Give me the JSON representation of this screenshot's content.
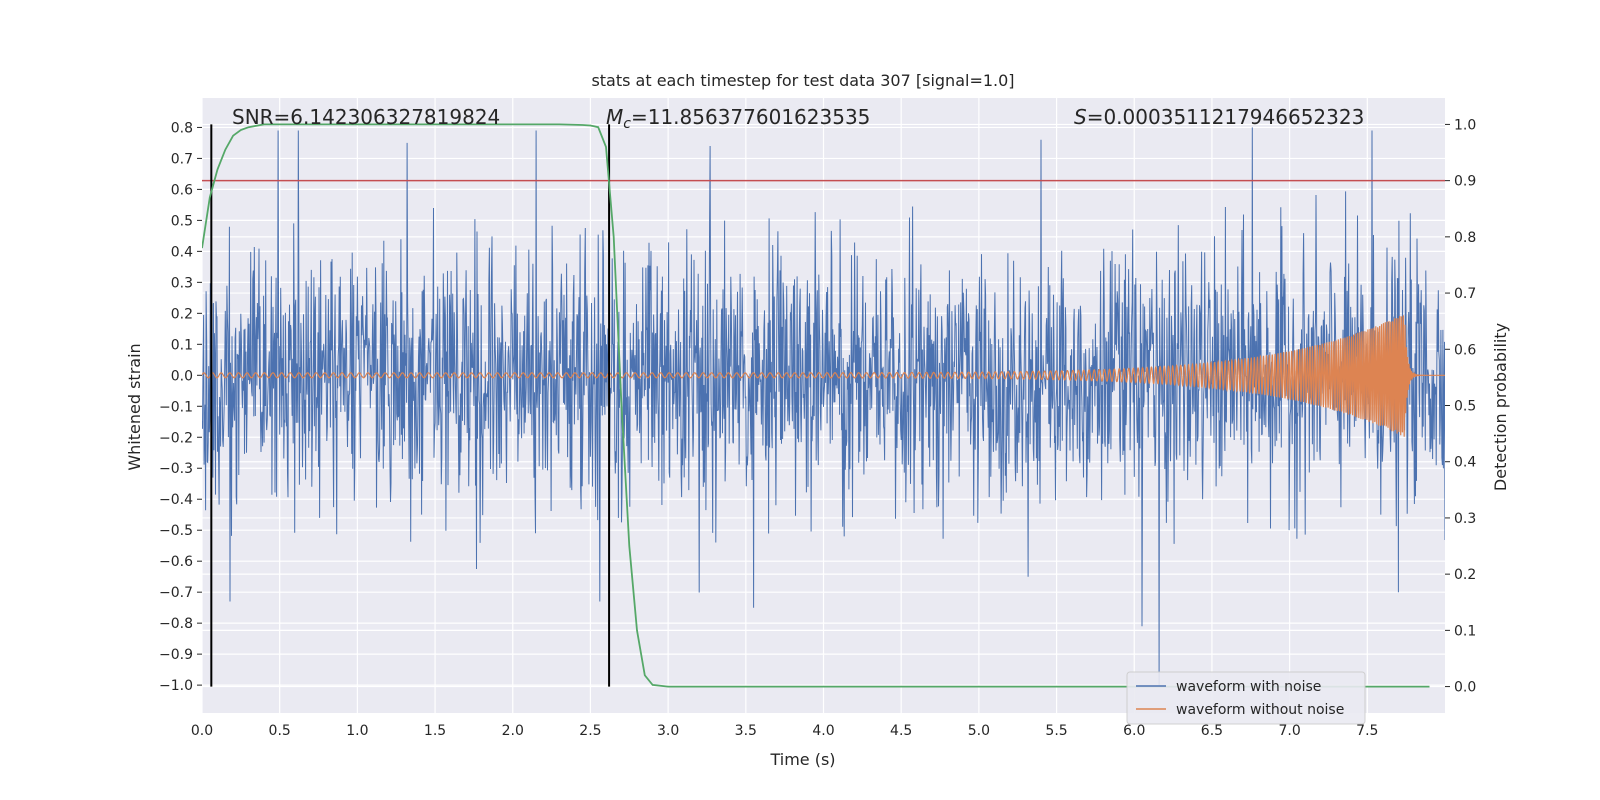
{
  "chart_data": {
    "type": "line",
    "title": "stats at each timestep for test data 307 [signal=1.0]",
    "xlabel": "Time (s)",
    "ylabel": "Whitened strain",
    "ylabel_right": "Detection probability",
    "xlim": [
      0.0,
      8.0
    ],
    "ylim": [
      -1.09,
      0.895
    ],
    "ylim_right": [
      -0.047,
      1.047
    ],
    "x_ticks": [
      "0.0",
      "0.5",
      "1.0",
      "1.5",
      "2.0",
      "2.5",
      "3.0",
      "3.5",
      "4.0",
      "4.5",
      "5.0",
      "5.5",
      "6.0",
      "6.5",
      "7.0",
      "7.5"
    ],
    "y_ticks": [
      "0.8",
      "0.7",
      "0.6",
      "0.5",
      "0.4",
      "0.3",
      "0.2",
      "0.1",
      "0.0",
      "−0.1",
      "−0.2",
      "−0.3",
      "−0.4",
      "−0.5",
      "−0.6",
      "−0.7",
      "−0.8",
      "−0.9",
      "−1.0"
    ],
    "y_ticks_right": [
      "1.0",
      "0.9",
      "0.8",
      "0.7",
      "0.6",
      "0.5",
      "0.4",
      "0.3",
      "0.2",
      "0.1",
      "0.0"
    ],
    "grid": true,
    "legend_position": "lower right",
    "annotations": {
      "snr": "SNR=6.142306327819824",
      "mc_prefix": "=11.856377601623535",
      "s_prefix": "=0.00035112179466523 23"
    },
    "vlines_x": [
      0.06,
      2.62
    ],
    "threshold_right": 0.9,
    "series": [
      {
        "name": "waveform with noise",
        "color": "#4c72b0",
        "description_range": [
          -1.0,
          0.8
        ],
        "peaks": [
          {
            "x": 0.18,
            "y": -0.73
          },
          {
            "x": 0.49,
            "y": 0.79
          },
          {
            "x": 0.62,
            "y": 0.79
          },
          {
            "x": 1.32,
            "y": 0.75
          },
          {
            "x": 2.15,
            "y": 0.79
          },
          {
            "x": 2.56,
            "y": -0.73
          },
          {
            "x": 3.27,
            "y": 0.74
          },
          {
            "x": 3.55,
            "y": -0.75
          },
          {
            "x": 5.4,
            "y": 0.76
          },
          {
            "x": 6.05,
            "y": -0.81
          },
          {
            "x": 6.16,
            "y": -1.0
          },
          {
            "x": 6.76,
            "y": 0.8
          },
          {
            "x": 7.53,
            "y": 0.79
          },
          {
            "x": 7.7,
            "y": -0.7
          }
        ]
      },
      {
        "name": "waveform without noise",
        "color": "#dd8452",
        "chirp": {
          "start_amp": 0.008,
          "peak_amp": 0.2,
          "merge_time": 7.74,
          "f_start": 18,
          "f_end": 90
        }
      },
      {
        "name": "detection probability",
        "color": "#55a868",
        "axis": "right",
        "x": [
          0.0,
          0.05,
          0.1,
          0.15,
          0.2,
          0.25,
          0.3,
          0.4,
          0.6,
          1.0,
          1.5,
          2.0,
          2.3,
          2.45,
          2.5,
          2.55,
          2.6,
          2.65,
          2.7,
          2.75,
          2.8,
          2.85,
          2.9,
          3.0,
          4.0,
          5.0,
          6.0,
          7.0,
          7.9
        ],
        "y": [
          0.78,
          0.87,
          0.92,
          0.955,
          0.98,
          0.99,
          0.995,
          1.0,
          1.0,
          1.0,
          1.0,
          1.0,
          1.0,
          0.999,
          0.998,
          0.995,
          0.96,
          0.8,
          0.5,
          0.25,
          0.1,
          0.02,
          0.003,
          0.0,
          0.0,
          0.0,
          0.0,
          0.0,
          0.0
        ]
      }
    ],
    "colors": {
      "axes_bg": "#eaeaf2",
      "grid": "#ffffff",
      "threshold": "#c44e52",
      "vline": "#000000"
    }
  }
}
